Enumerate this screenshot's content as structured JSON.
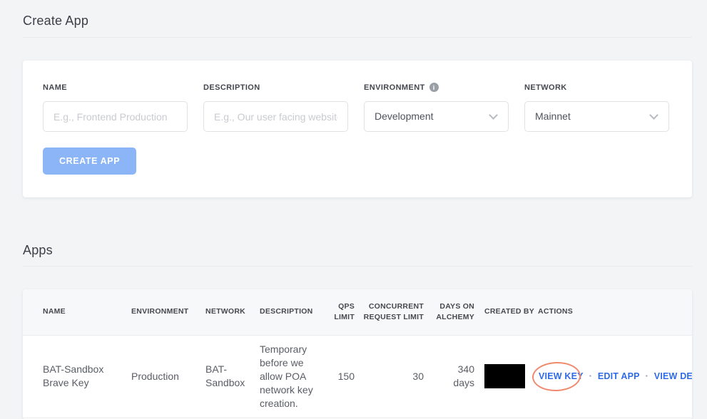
{
  "header": {
    "title": "Create App"
  },
  "form": {
    "fields": [
      {
        "label": "NAME",
        "placeholder": "E.g., Frontend Production"
      },
      {
        "label": "DESCRIPTION",
        "placeholder": "E.g., Our user facing website"
      },
      {
        "label": "ENVIRONMENT",
        "value": "Development",
        "info_glyph": "i"
      },
      {
        "label": "NETWORK",
        "value": "Mainnet"
      }
    ],
    "submit_label": "CREATE APP"
  },
  "apps": {
    "title": "Apps",
    "table": {
      "columns": [
        "NAME",
        "ENVIRONMENT",
        "NETWORK",
        "DESCRIPTION",
        "QPS LIMIT",
        "CONCURRENT REQUEST LIMIT",
        "DAYS ON ALCHEMY",
        "CREATED BY",
        "ACTIONS"
      ],
      "row": {
        "name": "BAT-Sandbox Brave Key",
        "environment": "Production",
        "network": "BAT-Sandbox",
        "description": "Temporary before we allow POA network key creation.",
        "qps_limit": "150",
        "concurrent_request_limit": "30",
        "days_on_alchemy": "340 days",
        "actions": {
          "view_key": "VIEW KEY",
          "edit_app": "EDIT APP",
          "view_details": "VIEW DETAILS",
          "separator": "·"
        }
      }
    }
  },
  "colors": {
    "action_blue": "#2f6ae8",
    "button_blue": "#8cb5f8",
    "annotation_red": "#f08a6e",
    "page_background": "#f3f4f6"
  }
}
